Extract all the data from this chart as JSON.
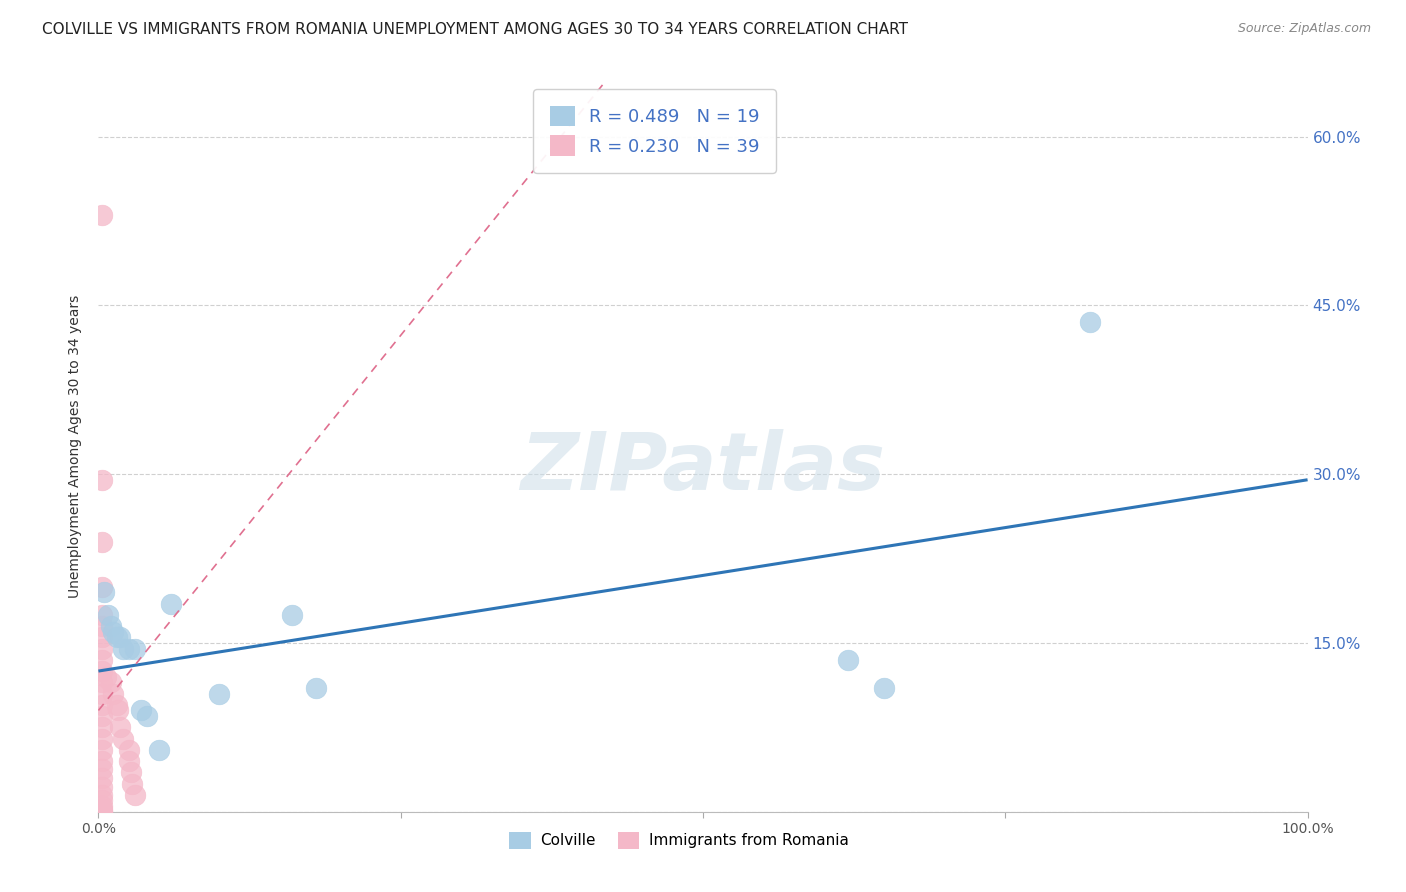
{
  "title": "COLVILLE VS IMMIGRANTS FROM ROMANIA UNEMPLOYMENT AMONG AGES 30 TO 34 YEARS CORRELATION CHART",
  "source": "Source: ZipAtlas.com",
  "ylabel": "Unemployment Among Ages 30 to 34 years",
  "xlim": [
    0,
    1.0
  ],
  "ylim": [
    0,
    0.65
  ],
  "colville_color": "#a8cce4",
  "romania_color": "#f4b8c8",
  "colville_R": 0.489,
  "colville_N": 19,
  "romania_R": 0.23,
  "romania_N": 39,
  "colville_trend_x": [
    0.0,
    1.0
  ],
  "colville_trend_y": [
    0.125,
    0.295
  ],
  "romania_trend_x": [
    0.0,
    0.42
  ],
  "romania_trend_y": [
    0.09,
    0.65
  ],
  "colville_points": [
    [
      0.005,
      0.195
    ],
    [
      0.008,
      0.175
    ],
    [
      0.01,
      0.165
    ],
    [
      0.012,
      0.16
    ],
    [
      0.015,
      0.155
    ],
    [
      0.018,
      0.155
    ],
    [
      0.02,
      0.145
    ],
    [
      0.025,
      0.145
    ],
    [
      0.03,
      0.145
    ],
    [
      0.035,
      0.09
    ],
    [
      0.04,
      0.085
    ],
    [
      0.05,
      0.055
    ],
    [
      0.06,
      0.185
    ],
    [
      0.1,
      0.105
    ],
    [
      0.16,
      0.175
    ],
    [
      0.18,
      0.11
    ],
    [
      0.62,
      0.135
    ],
    [
      0.65,
      0.11
    ],
    [
      0.82,
      0.435
    ]
  ],
  "romania_points": [
    [
      0.003,
      0.53
    ],
    [
      0.003,
      0.295
    ],
    [
      0.003,
      0.24
    ],
    [
      0.003,
      0.2
    ],
    [
      0.003,
      0.175
    ],
    [
      0.003,
      0.165
    ],
    [
      0.003,
      0.155
    ],
    [
      0.003,
      0.145
    ],
    [
      0.003,
      0.135
    ],
    [
      0.003,
      0.125
    ],
    [
      0.003,
      0.115
    ],
    [
      0.003,
      0.105
    ],
    [
      0.003,
      0.095
    ],
    [
      0.003,
      0.085
    ],
    [
      0.003,
      0.075
    ],
    [
      0.003,
      0.065
    ],
    [
      0.003,
      0.055
    ],
    [
      0.003,
      0.045
    ],
    [
      0.003,
      0.038
    ],
    [
      0.003,
      0.03
    ],
    [
      0.003,
      0.022
    ],
    [
      0.003,
      0.015
    ],
    [
      0.003,
      0.01
    ],
    [
      0.003,
      0.005
    ],
    [
      0.003,
      0.002
    ],
    [
      0.003,
      0.001
    ],
    [
      0.003,
      0.0
    ],
    [
      0.006,
      0.12
    ],
    [
      0.01,
      0.115
    ],
    [
      0.012,
      0.105
    ],
    [
      0.015,
      0.095
    ],
    [
      0.016,
      0.09
    ],
    [
      0.018,
      0.075
    ],
    [
      0.02,
      0.065
    ],
    [
      0.025,
      0.055
    ],
    [
      0.025,
      0.045
    ],
    [
      0.027,
      0.035
    ],
    [
      0.028,
      0.025
    ],
    [
      0.03,
      0.015
    ]
  ],
  "watermark": "ZIPatlas",
  "legend_text_color": "#4472c4",
  "grid_color": "#d0d0d0",
  "title_fontsize": 11,
  "axis_fontsize": 10
}
